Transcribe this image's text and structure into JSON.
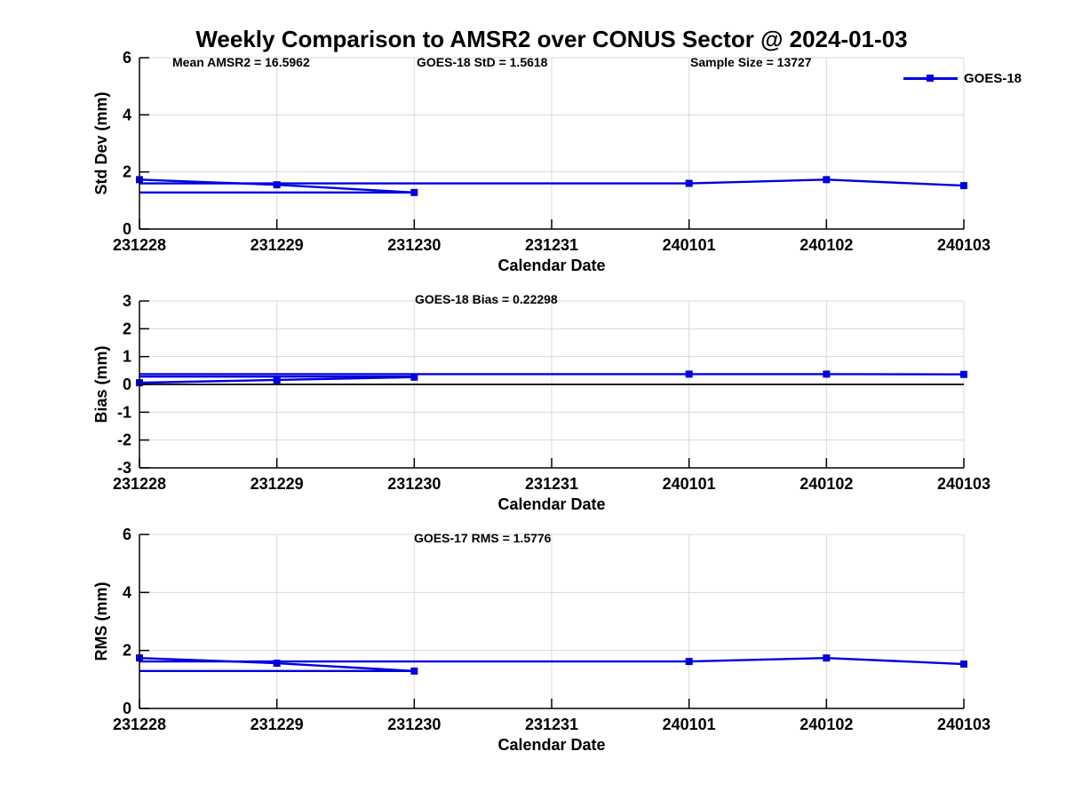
{
  "title": "Weekly Comparison to AMSR2 over CONUS Sector @ 2024-01-03",
  "legend": {
    "label": "GOES-18",
    "color": "#0000e0"
  },
  "chart_data": [
    {
      "type": "line",
      "panel": "std_dev",
      "ylabel": "Std Dev (mm)",
      "xlabel": "Calendar Date",
      "categories": [
        "231228",
        "231229",
        "231230",
        "231231",
        "240101",
        "240102",
        "240103"
      ],
      "ylim": [
        0,
        6
      ],
      "yticks": [
        0,
        2,
        4,
        6
      ],
      "grid": true,
      "line_color": "#0000e0",
      "annotations": [
        {
          "text": "Mean AMSR2 = 16.5962"
        },
        {
          "text": "GOES-18 StD = 1.5618"
        },
        {
          "text": "Sample Size = 13727"
        }
      ],
      "series": [
        {
          "name": "GOES-18",
          "segments": [
            [
              [
                0,
                1.73
              ],
              [
                1,
                1.55
              ],
              [
                2,
                1.28
              ]
            ],
            [
              [
                0,
                1.6
              ],
              [
                4,
                1.6
              ],
              [
                5,
                1.73
              ],
              [
                6,
                1.52
              ]
            ],
            [
              [
                0,
                1.28
              ],
              [
                2,
                1.28
              ]
            ]
          ],
          "markers": [
            [
              0,
              1.73
            ],
            [
              1,
              1.55
            ],
            [
              2,
              1.28
            ],
            [
              4,
              1.6
            ],
            [
              5,
              1.73
            ],
            [
              6,
              1.52
            ]
          ]
        }
      ]
    },
    {
      "type": "line",
      "panel": "bias",
      "ylabel": "Bias (mm)",
      "xlabel": "Calendar Date",
      "categories": [
        "231228",
        "231229",
        "231230",
        "231231",
        "240101",
        "240102",
        "240103"
      ],
      "ylim": [
        -3,
        3
      ],
      "yticks": [
        -3,
        -2,
        -1,
        0,
        1,
        2,
        3
      ],
      "grid": true,
      "zero_line": true,
      "line_color": "#0000e0",
      "annotations": [
        {
          "text": "GOES-18 Bias  = 0.22298"
        }
      ],
      "series": [
        {
          "name": "GOES-18",
          "segments": [
            [
              [
                0,
                0.06
              ],
              [
                1,
                0.16
              ],
              [
                2,
                0.26
              ]
            ],
            [
              [
                0,
                0.37
              ],
              [
                4,
                0.37
              ],
              [
                5,
                0.37
              ],
              [
                6,
                0.36
              ]
            ],
            [
              [
                0,
                0.28
              ],
              [
                2,
                0.28
              ]
            ]
          ],
          "markers": [
            [
              0,
              0.06
            ],
            [
              1,
              0.16
            ],
            [
              2,
              0.26
            ],
            [
              4,
              0.37
            ],
            [
              5,
              0.37
            ],
            [
              6,
              0.36
            ]
          ]
        }
      ]
    },
    {
      "type": "line",
      "panel": "rms",
      "ylabel": "RMS (mm)",
      "xlabel": "Calendar Date",
      "categories": [
        "231228",
        "231229",
        "231230",
        "231231",
        "240101",
        "240102",
        "240103"
      ],
      "ylim": [
        0,
        6
      ],
      "yticks": [
        0,
        2,
        4,
        6
      ],
      "grid": true,
      "line_color": "#0000e0",
      "annotations": [
        {
          "text": "GOES-17 RMS = 1.5776"
        }
      ],
      "series": [
        {
          "name": "GOES-18",
          "segments": [
            [
              [
                0,
                1.74
              ],
              [
                1,
                1.56
              ],
              [
                2,
                1.29
              ]
            ],
            [
              [
                0,
                1.62
              ],
              [
                4,
                1.62
              ],
              [
                5,
                1.74
              ],
              [
                6,
                1.53
              ]
            ],
            [
              [
                0,
                1.29
              ],
              [
                2,
                1.29
              ]
            ]
          ],
          "markers": [
            [
              0,
              1.74
            ],
            [
              1,
              1.56
            ],
            [
              2,
              1.29
            ],
            [
              4,
              1.62
            ],
            [
              5,
              1.74
            ],
            [
              6,
              1.53
            ]
          ]
        }
      ]
    }
  ]
}
